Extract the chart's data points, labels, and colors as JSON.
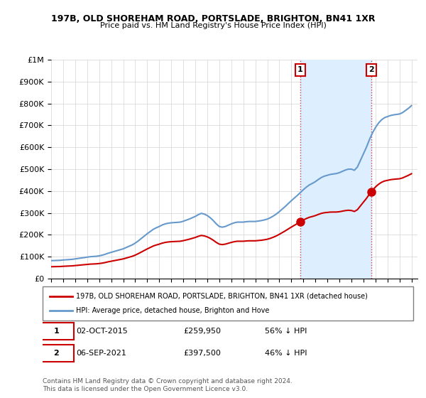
{
  "title": "197B, OLD SHOREHAM ROAD, PORTSLADE, BRIGHTON, BN41 1XR",
  "subtitle": "Price paid vs. HM Land Registry's House Price Index (HPI)",
  "xlabel": "",
  "ylabel": "",
  "ylim": [
    0,
    1000000
  ],
  "yticks": [
    0,
    100000,
    200000,
    300000,
    400000,
    500000,
    600000,
    700000,
    800000,
    900000,
    1000000
  ],
  "ytick_labels": [
    "£0",
    "£100K",
    "£200K",
    "£300K",
    "£400K",
    "£500K",
    "£600K",
    "£700K",
    "£800K",
    "£900K",
    "£1M"
  ],
  "property_color": "#cc0000",
  "hpi_color": "#6699cc",
  "shade_color": "#ddeeff",
  "point1_date": "2015-10-02",
  "point1_price": 259950,
  "point1_label": "1",
  "point2_date": "2021-09-06",
  "point2_price": 397500,
  "point2_label": "2",
  "legend_property": "197B, OLD SHOREHAM ROAD, PORTSLADE, BRIGHTON, BN41 1XR (detached house)",
  "legend_hpi": "HPI: Average price, detached house, Brighton and Hove",
  "annotation1": "1    02-OCT-2015         £259,950        56% ↓ HPI",
  "annotation2": "2    06-SEP-2021         £397,500        46% ↓ HPI",
  "footer": "Contains HM Land Registry data © Crown copyright and database right 2024.\nThis data is licensed under the Open Government Licence v3.0.",
  "hpi_data": {
    "years": [
      1995.0,
      1995.25,
      1995.5,
      1995.75,
      1996.0,
      1996.25,
      1996.5,
      1996.75,
      1997.0,
      1997.25,
      1997.5,
      1997.75,
      1998.0,
      1998.25,
      1998.5,
      1998.75,
      1999.0,
      1999.25,
      1999.5,
      1999.75,
      2000.0,
      2000.25,
      2000.5,
      2000.75,
      2001.0,
      2001.25,
      2001.5,
      2001.75,
      2002.0,
      2002.25,
      2002.5,
      2002.75,
      2003.0,
      2003.25,
      2003.5,
      2003.75,
      2004.0,
      2004.25,
      2004.5,
      2004.75,
      2005.0,
      2005.25,
      2005.5,
      2005.75,
      2006.0,
      2006.25,
      2006.5,
      2006.75,
      2007.0,
      2007.25,
      2007.5,
      2007.75,
      2008.0,
      2008.25,
      2008.5,
      2008.75,
      2009.0,
      2009.25,
      2009.5,
      2009.75,
      2010.0,
      2010.25,
      2010.5,
      2010.75,
      2011.0,
      2011.25,
      2011.5,
      2011.75,
      2012.0,
      2012.25,
      2012.5,
      2012.75,
      2013.0,
      2013.25,
      2013.5,
      2013.75,
      2014.0,
      2014.25,
      2014.5,
      2014.75,
      2015.0,
      2015.25,
      2015.5,
      2015.75,
      2016.0,
      2016.25,
      2016.5,
      2016.75,
      2017.0,
      2017.25,
      2017.5,
      2017.75,
      2018.0,
      2018.25,
      2018.5,
      2018.75,
      2019.0,
      2019.25,
      2019.5,
      2019.75,
      2020.0,
      2020.25,
      2020.5,
      2020.75,
      2021.0,
      2021.25,
      2021.5,
      2021.75,
      2022.0,
      2022.25,
      2022.5,
      2022.75,
      2023.0,
      2023.25,
      2023.5,
      2023.75,
      2024.0,
      2024.25,
      2024.5,
      2024.75,
      2025.0
    ],
    "values": [
      82000,
      82500,
      83000,
      83500,
      85000,
      86000,
      87000,
      88000,
      90000,
      92000,
      94000,
      96000,
      98000,
      100000,
      101000,
      102000,
      104000,
      107000,
      111000,
      116000,
      120000,
      124000,
      128000,
      132000,
      136000,
      142000,
      148000,
      154000,
      162000,
      172000,
      183000,
      194000,
      205000,
      215000,
      225000,
      232000,
      238000,
      245000,
      250000,
      253000,
      255000,
      256000,
      257000,
      258000,
      262000,
      267000,
      272000,
      278000,
      284000,
      292000,
      298000,
      295000,
      288000,
      278000,
      265000,
      250000,
      238000,
      235000,
      238000,
      244000,
      250000,
      255000,
      258000,
      258000,
      258000,
      260000,
      261000,
      261000,
      261000,
      263000,
      265000,
      268000,
      272000,
      278000,
      286000,
      295000,
      306000,
      318000,
      330000,
      343000,
      356000,
      368000,
      380000,
      393000,
      406000,
      418000,
      428000,
      435000,
      443000,
      453000,
      462000,
      468000,
      472000,
      476000,
      478000,
      480000,
      484000,
      490000,
      496000,
      500000,
      500000,
      495000,
      510000,
      540000,
      570000,
      600000,
      635000,
      665000,
      690000,
      710000,
      725000,
      735000,
      740000,
      745000,
      748000,
      750000,
      752000,
      758000,
      768000,
      778000,
      790000
    ]
  },
  "property_sales": [
    {
      "year": 2015.75,
      "price": 259950
    },
    {
      "year": 2021.67,
      "price": 397500
    }
  ]
}
